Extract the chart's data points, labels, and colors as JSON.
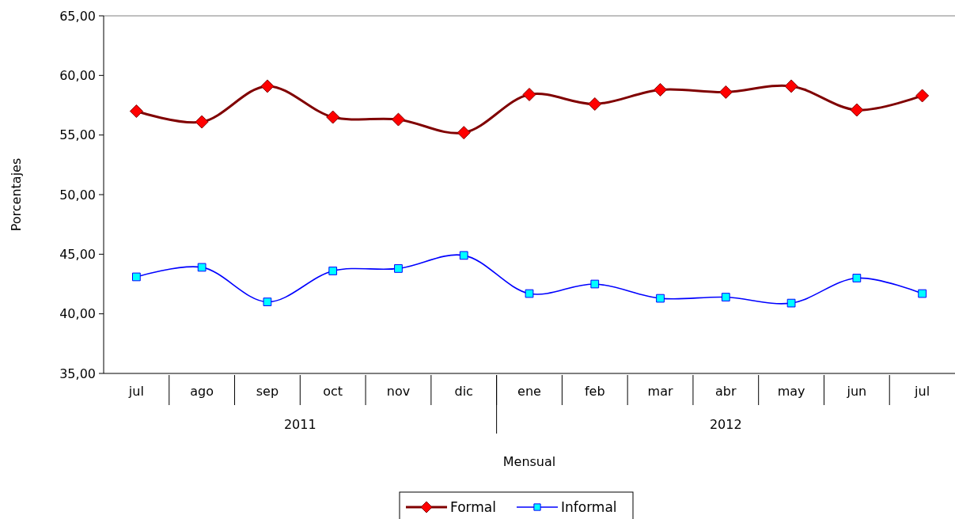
{
  "chart_data": {
    "type": "line",
    "xlabel": "Mensual",
    "ylabel": "Porcentajes",
    "categories": [
      "jul",
      "ago",
      "sep",
      "oct",
      "nov",
      "dic",
      "ene",
      "feb",
      "mar",
      "abr",
      "may",
      "jun",
      "jul"
    ],
    "series": [
      {
        "name": "Formal",
        "color": "#800000",
        "marker": "diamond",
        "values": [
          57.0,
          56.1,
          59.1,
          56.5,
          56.3,
          55.2,
          58.4,
          57.6,
          58.8,
          58.6,
          59.1,
          57.1,
          58.3
        ]
      },
      {
        "name": "Informal",
        "color": "#0000ff",
        "marker": "square",
        "values": [
          43.1,
          43.9,
          41.0,
          43.6,
          43.8,
          44.9,
          41.7,
          42.5,
          41.3,
          41.4,
          40.9,
          43.0,
          41.7
        ]
      }
    ],
    "ylim": [
      35,
      65
    ],
    "yticks": [
      {
        "value": 35,
        "label": "35,00"
      },
      {
        "value": 40,
        "label": "40,00"
      },
      {
        "value": 45,
        "label": "45,00"
      },
      {
        "value": 50,
        "label": "50,00"
      },
      {
        "value": 55,
        "label": "55,00"
      },
      {
        "value": 60,
        "label": "60,00"
      },
      {
        "value": 65,
        "label": "65,00"
      }
    ],
    "annotations": [
      "2011",
      "2012"
    ],
    "grid": false,
    "legend": "bottom"
  }
}
